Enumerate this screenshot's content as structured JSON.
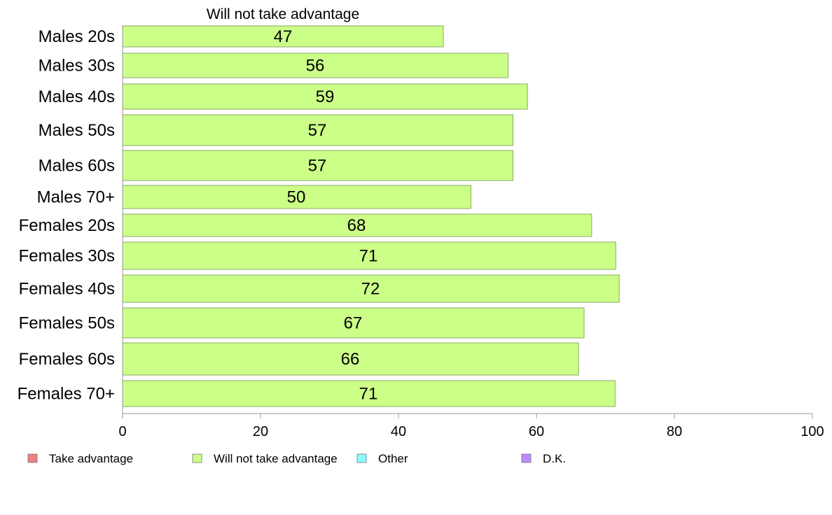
{
  "chart_data": {
    "type": "bar",
    "orientation": "horizontal",
    "title": "Will not take advantage",
    "categories": [
      "Males 20s",
      "Males 30s",
      "Males 40s",
      "Males 50s",
      "Males 60s",
      "Males 70+",
      "Females 20s",
      "Females 30s",
      "Females 40s",
      "Females 50s",
      "Females 60s",
      "Females 70+"
    ],
    "series": [
      {
        "name": "Will not take advantage",
        "values": [
          46.5,
          55.9,
          58.7,
          56.6,
          56.6,
          50.5,
          68.0,
          71.5,
          72.0,
          66.9,
          66.1,
          71.4
        ],
        "labels": [
          "47",
          "56",
          "59",
          "57",
          "57",
          "50",
          "68",
          "71",
          "72",
          "67",
          "66",
          "71"
        ]
      }
    ],
    "xlim": [
      0,
      100
    ],
    "xticks": [
      "0",
      "20",
      "40",
      "60",
      "80",
      "100"
    ],
    "grid": false,
    "legend": {
      "placement": "bottom",
      "entries": [
        {
          "label": "Take advantage",
          "color": "#f08080"
        },
        {
          "label": "Will not take advantage",
          "color": "#ccff88"
        },
        {
          "label": "Other",
          "color": "#88ffff"
        },
        {
          "label": "D.K.",
          "color": "#bb88ff"
        }
      ]
    },
    "bar_color": "#ccff88",
    "bar_stroke": "#88aa66"
  }
}
